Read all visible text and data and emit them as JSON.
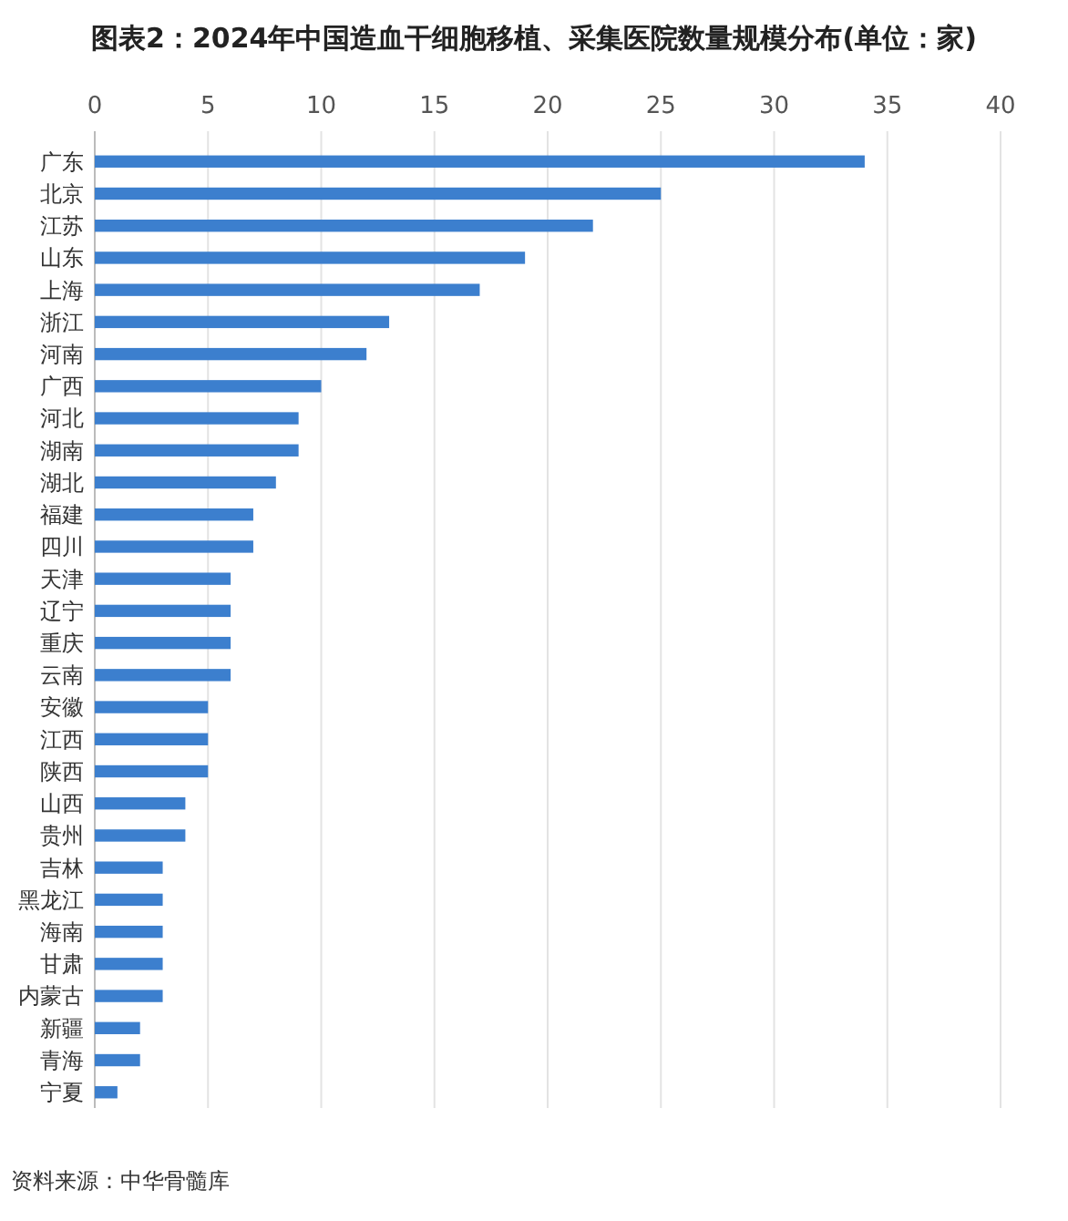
{
  "chart_data": {
    "type": "bar",
    "orientation": "horizontal",
    "title": "图表2：2024年中国造血干细胞移植、采集医院数量规模分布(单位：家)",
    "categories": [
      "广东",
      "北京",
      "江苏",
      "山东",
      "上海",
      "浙江",
      "河南",
      "广西",
      "河北",
      "湖南",
      "湖北",
      "福建",
      "四川",
      "天津",
      "辽宁",
      "重庆",
      "云南",
      "安徽",
      "江西",
      "陕西",
      "山西",
      "贵州",
      "吉林",
      "黑龙江",
      "海南",
      "甘肃",
      "内蒙古",
      "新疆",
      "青海",
      "宁夏"
    ],
    "values": [
      34,
      25,
      22,
      19,
      17,
      13,
      12,
      10,
      9,
      9,
      8,
      7,
      7,
      6,
      6,
      6,
      6,
      5,
      5,
      5,
      4,
      4,
      3,
      3,
      3,
      3,
      3,
      2,
      2,
      1
    ],
    "color": "#3c7fce",
    "xlim": [
      0,
      40
    ],
    "xticks": [
      0,
      5,
      10,
      15,
      20,
      25,
      30,
      35,
      40
    ],
    "grid": "x",
    "annotations": [
      "资料来源：中华骨髓库"
    ]
  }
}
